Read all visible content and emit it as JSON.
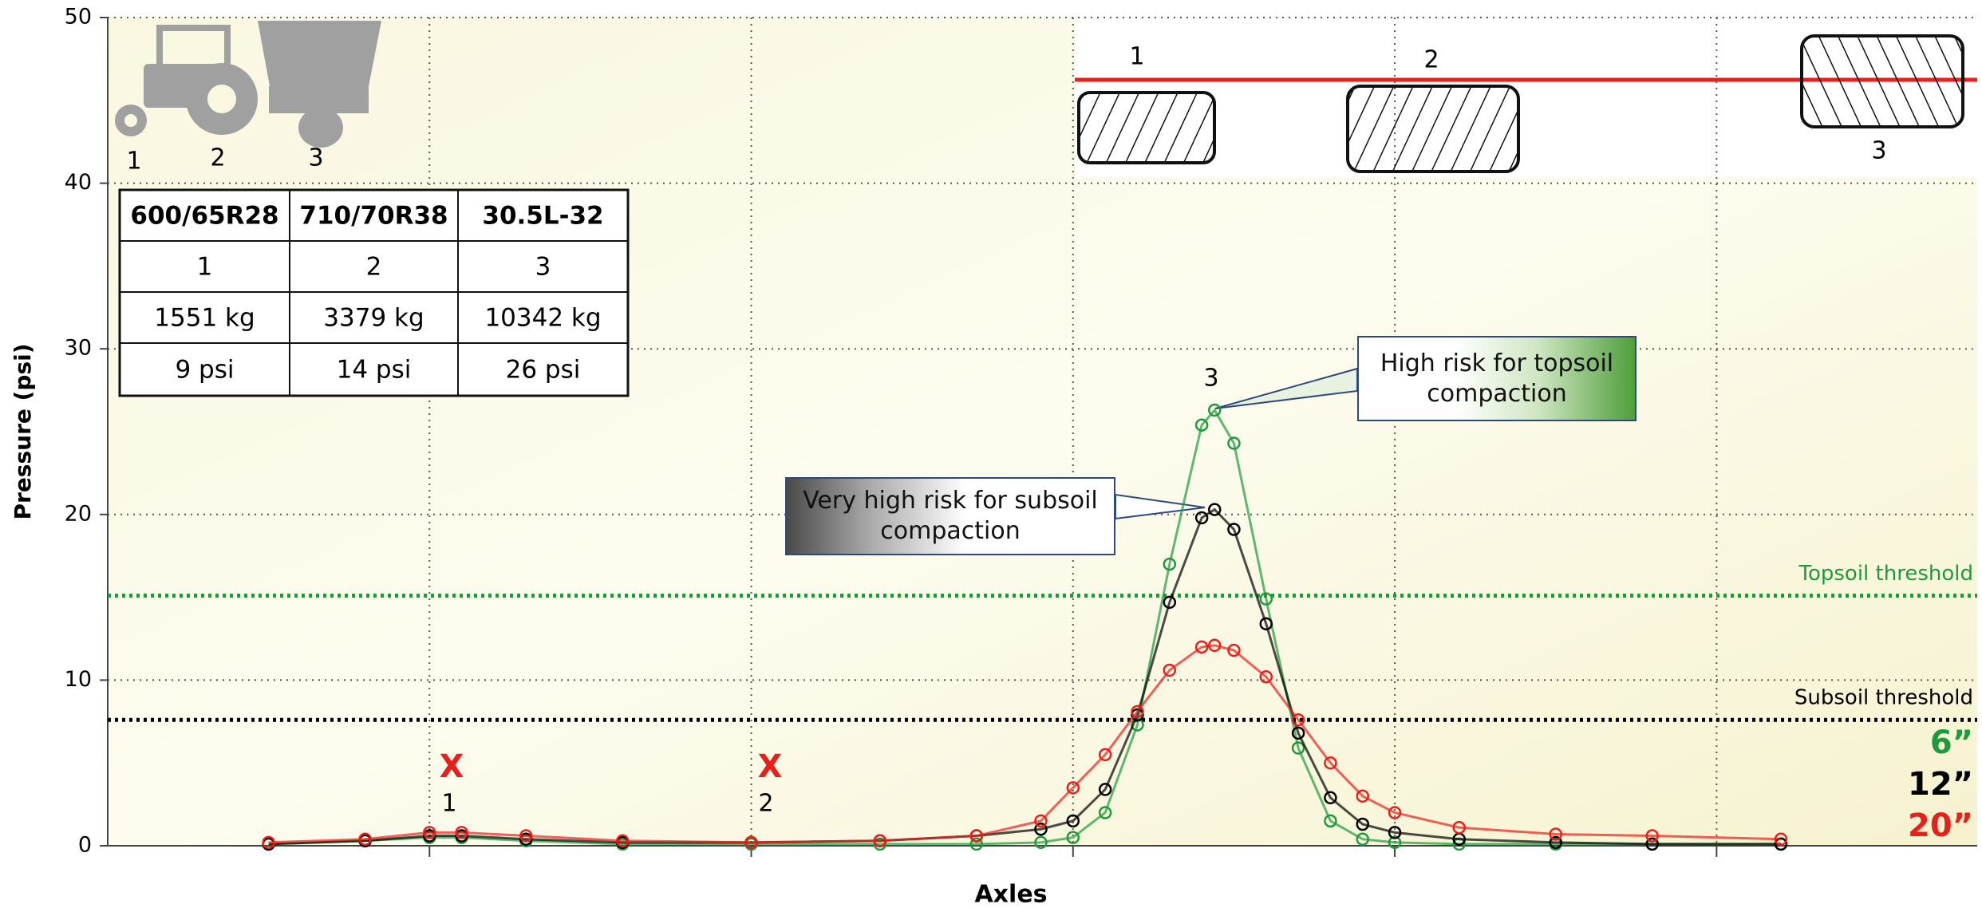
{
  "chart_data": {
    "type": "line",
    "y_label": "Pressure (psi)",
    "x_label": "Axles",
    "xlim": [
      0,
      5.81
    ],
    "xticks": [
      1,
      2,
      3,
      4,
      5
    ],
    "ylim": [
      0,
      50
    ],
    "yticks": [
      0,
      10,
      20,
      30,
      40,
      50
    ],
    "grid": true,
    "x": [
      0.5,
      0.8,
      1.0,
      1.1,
      1.3,
      1.6,
      2.0,
      2.4,
      2.7,
      2.9,
      3.0,
      3.1,
      3.2,
      3.3,
      3.4,
      3.44,
      3.5,
      3.6,
      3.7,
      3.8,
      3.9,
      4.0,
      4.2,
      4.5,
      4.8,
      5.2
    ],
    "series": [
      {
        "name": "6”",
        "color": "#1e9a3c",
        "values": [
          0.1,
          0.3,
          0.5,
          0.5,
          0.3,
          0.1,
          0.1,
          0.1,
          0.1,
          0.2,
          0.5,
          2.0,
          7.3,
          17.0,
          25.4,
          26.3,
          24.3,
          14.9,
          5.9,
          1.5,
          0.4,
          0.2,
          0.1,
          0.1,
          0.1,
          0.1
        ]
      },
      {
        "name": "12”",
        "color": "#000000",
        "values": [
          0.1,
          0.3,
          0.6,
          0.6,
          0.4,
          0.2,
          0.2,
          0.3,
          0.6,
          1.0,
          1.5,
          3.4,
          7.9,
          14.7,
          19.8,
          20.3,
          19.1,
          13.4,
          6.8,
          2.9,
          1.3,
          0.8,
          0.4,
          0.2,
          0.1,
          0.1
        ]
      },
      {
        "name": "20”",
        "color": "#e8201a",
        "values": [
          0.2,
          0.4,
          0.8,
          0.8,
          0.6,
          0.3,
          0.2,
          0.3,
          0.6,
          1.5,
          3.5,
          5.5,
          8.1,
          10.6,
          12.0,
          12.1,
          11.8,
          10.2,
          7.6,
          5.0,
          3.0,
          2.0,
          1.1,
          0.7,
          0.6,
          0.4
        ]
      }
    ],
    "thresholds": [
      {
        "label": "Topsoil threshold",
        "value": 15.1,
        "color": "#1e9a3c"
      },
      {
        "label": "Subsoil threshold",
        "value": 7.6,
        "color": "#000000"
      }
    ],
    "callouts": [
      "High risk for topsoil compaction",
      "Very high risk for subsoil compaction"
    ],
    "axle_markers": [
      {
        "mark": "X",
        "label": "1"
      },
      {
        "mark": "X",
        "label": "2"
      }
    ],
    "peak_label": "3"
  },
  "table": {
    "header": [
      "600/65R28",
      "710/70R38",
      "30.5L-32"
    ],
    "rows": [
      [
        "1",
        "2",
        "3"
      ],
      [
        "1551 kg",
        "3379 kg",
        "10342 kg"
      ],
      [
        "9 psi",
        "14 psi",
        "26 psi"
      ]
    ]
  },
  "diagram": {
    "tractor_labels": [
      "1",
      "2",
      "3"
    ],
    "tire_labels": [
      "1",
      "2",
      "3"
    ]
  }
}
